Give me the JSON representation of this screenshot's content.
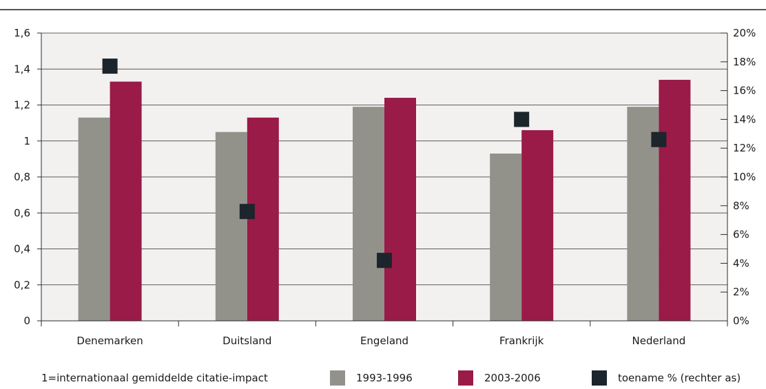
{
  "chart_data": {
    "type": "bar",
    "categories": [
      "Denemarken",
      "Duitsland",
      "Engeland",
      "Frankrijk",
      "Nederland"
    ],
    "series": [
      {
        "name": "1993-1996",
        "axis": "left",
        "color": "#92928b",
        "values": [
          1.13,
          1.05,
          1.19,
          0.93,
          1.19
        ]
      },
      {
        "name": "2003-2006",
        "axis": "left",
        "color": "#9a1a48",
        "values": [
          1.33,
          1.13,
          1.24,
          1.06,
          1.34
        ]
      },
      {
        "name": "toename % (rechter as)",
        "axis": "right",
        "kind": "marker",
        "color": "#1c252b",
        "values": [
          17.7,
          7.6,
          4.2,
          14.0,
          12.6
        ]
      }
    ],
    "ylim_left": [
      0,
      1.6
    ],
    "ylim_right": [
      0,
      20
    ],
    "left_ticks": [
      "0",
      "0,2",
      "0,4",
      "0,6",
      "0,8",
      "1",
      "1,2",
      "1,4",
      "1,6"
    ],
    "right_ticks": [
      "0%",
      "2%",
      "4%",
      "6%",
      "8%",
      "10%",
      "12%",
      "14%",
      "16%",
      "18%",
      "20%"
    ],
    "grid": true,
    "plot_background": "#f3f1ef",
    "legend_position": "bottom"
  },
  "footnote": "1=internationaal gemiddelde citatie-impact"
}
